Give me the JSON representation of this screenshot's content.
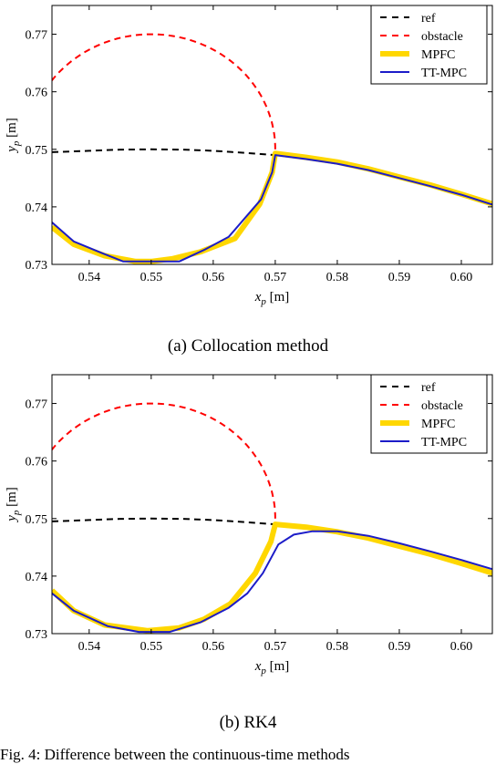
{
  "chart_data": [
    {
      "type": "line",
      "caption": "(a) Collocation method",
      "xlabel": "x_p [m]",
      "ylabel": "y_p [m]",
      "xlim": [
        0.534,
        0.605
      ],
      "ylim": [
        0.73,
        0.775
      ],
      "xticks": [
        "0.54",
        "0.55",
        "0.56",
        "0.57",
        "0.58",
        "0.59",
        "0.60"
      ],
      "yticks": [
        "0.73",
        "0.74",
        "0.75",
        "0.76",
        "0.77"
      ],
      "legend_position": "top-right",
      "series": [
        {
          "name": "ref",
          "color": "#000000",
          "style": "dashed",
          "x": [
            0.534,
            0.54,
            0.545,
            0.55,
            0.555,
            0.56,
            0.565,
            0.57
          ],
          "y": [
            0.7495,
            0.74975,
            0.74995,
            0.75,
            0.74995,
            0.74975,
            0.7494,
            0.749
          ]
        },
        {
          "name": "obstacle",
          "color": "#ff0000",
          "style": "dashed",
          "circle": {
            "cx": 0.55,
            "cy": 0.75,
            "r": 0.02,
            "from_deg": 0,
            "to_deg": 180
          }
        },
        {
          "name": "MPFC",
          "color": "#ffd700",
          "style": "thick",
          "x": [
            0.534,
            0.5375,
            0.5425,
            0.5475,
            0.55,
            0.5535,
            0.558,
            0.5635,
            0.5675,
            0.5695,
            0.57,
            0.575,
            0.58,
            0.585,
            0.59,
            0.595,
            0.6,
            0.605
          ],
          "y": [
            0.7365,
            0.7335,
            0.7315,
            0.7305,
            0.7305,
            0.731,
            0.7322,
            0.7345,
            0.7405,
            0.746,
            0.7493,
            0.7486,
            0.7478,
            0.7466,
            0.7452,
            0.7438,
            0.7422,
            0.7405
          ]
        },
        {
          "name": "TT-MPC",
          "color": "#1c1cc8",
          "style": "solid",
          "x": [
            0.534,
            0.5375,
            0.542,
            0.5455,
            0.5495,
            0.5545,
            0.5585,
            0.5625,
            0.5677,
            0.5695,
            0.57,
            0.575,
            0.58,
            0.585,
            0.59,
            0.595,
            0.6,
            0.605
          ],
          "y": [
            0.7373,
            0.734,
            0.732,
            0.7305,
            0.7305,
            0.7305,
            0.7325,
            0.7348,
            0.7413,
            0.746,
            0.749,
            0.7483,
            0.7475,
            0.7464,
            0.745,
            0.7436,
            0.7421,
            0.7404
          ]
        }
      ]
    },
    {
      "type": "line",
      "caption": "(b) RK4",
      "xlabel": "x_p [m]",
      "ylabel": "y_p [m]",
      "xlim": [
        0.534,
        0.605
      ],
      "ylim": [
        0.73,
        0.775
      ],
      "xticks": [
        "0.54",
        "0.55",
        "0.56",
        "0.57",
        "0.58",
        "0.59",
        "0.60"
      ],
      "yticks": [
        "0.73",
        "0.74",
        "0.75",
        "0.76",
        "0.77"
      ],
      "legend_position": "top-right",
      "series": [
        {
          "name": "ref",
          "color": "#000000",
          "style": "dashed",
          "x": [
            0.534,
            0.54,
            0.545,
            0.55,
            0.555,
            0.56,
            0.565,
            0.57
          ],
          "y": [
            0.7495,
            0.74975,
            0.74995,
            0.75,
            0.74995,
            0.74975,
            0.7494,
            0.749
          ]
        },
        {
          "name": "obstacle",
          "color": "#ff0000",
          "style": "dashed",
          "circle": {
            "cx": 0.55,
            "cy": 0.75,
            "r": 0.02,
            "from_deg": 0,
            "to_deg": 180
          }
        },
        {
          "name": "MPFC",
          "color": "#ffd700",
          "style": "thick",
          "x": [
            0.534,
            0.5375,
            0.5425,
            0.5495,
            0.5545,
            0.5585,
            0.5628,
            0.5668,
            0.5693,
            0.57,
            0.575,
            0.58,
            0.585,
            0.59,
            0.595,
            0.6,
            0.605
          ],
          "y": [
            0.7375,
            0.734,
            0.7315,
            0.7305,
            0.731,
            0.7325,
            0.7352,
            0.7405,
            0.746,
            0.749,
            0.7485,
            0.7477,
            0.7466,
            0.7452,
            0.7438,
            0.7422,
            0.7405
          ]
        },
        {
          "name": "TT-MPC",
          "color": "#1c1cc8",
          "style": "solid",
          "x": [
            0.534,
            0.5375,
            0.543,
            0.548,
            0.553,
            0.558,
            0.5625,
            0.5655,
            0.568,
            0.5705,
            0.573,
            0.576,
            0.58,
            0.585,
            0.59,
            0.595,
            0.6,
            0.605
          ],
          "y": [
            0.737,
            0.734,
            0.7313,
            0.7303,
            0.7303,
            0.732,
            0.7345,
            0.737,
            0.7405,
            0.7455,
            0.7472,
            0.7478,
            0.7478,
            0.747,
            0.7457,
            0.7443,
            0.7428,
            0.7412
          ]
        }
      ]
    }
  ],
  "bottom_text": "Fig. 4:  Difference between the continuous-time methods"
}
